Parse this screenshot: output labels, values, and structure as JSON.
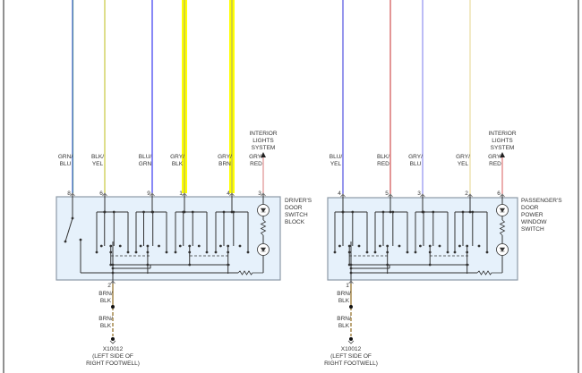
{
  "colors": {
    "box_fill": "#e6f1fb",
    "box_stroke": "#8c9aa6",
    "circuit": "#333333",
    "ground_wire": "#a08040"
  },
  "components": [
    {
      "name_lines": [
        "DRIVER'S",
        "DOOR",
        "SWITCH",
        "BLOCK"
      ],
      "interior": {
        "lines": [
          "INTERIOR",
          "LIGHTS",
          "SYSTEM"
        ],
        "pin_index": 5
      },
      "pins": [
        {
          "wire": [
            "GRN/",
            "BLU"
          ],
          "pin": "8",
          "color": "#4060e0",
          "stripe": "#50a050",
          "thick": false
        },
        {
          "wire": [
            "BLK/",
            "YEL"
          ],
          "pin": "6",
          "color": "#c8c840",
          "thick": false
        },
        {
          "wire": [
            "BLU/",
            "GRN"
          ],
          "pin": "9",
          "color": "#3838f0",
          "thick": false
        },
        {
          "wire": [
            "GRY/",
            "BLK"
          ],
          "pin": "1",
          "color": "#ffff00",
          "stripe": "#909090",
          "thick": true
        },
        {
          "wire": [
            "GRY/",
            "BRN"
          ],
          "pin": "4",
          "color": "#ffff00",
          "stripe": "#909090",
          "thick": true
        },
        {
          "wire": [
            "GRY/",
            "RED"
          ],
          "pin": "3",
          "color": "#e09090",
          "thick": false
        }
      ],
      "ground": {
        "pin": "2",
        "wire_top": [
          "BRN/",
          "BLK"
        ],
        "wire_bottom": [
          "BRN/",
          "BLK"
        ],
        "connector": [
          "X10012",
          "(LEFT SIDE OF",
          "RIGHT FOOTWELL)"
        ]
      }
    },
    {
      "name_lines": [
        "PASSENGER'S",
        "DOOR",
        "POWER",
        "WINDOW",
        "SWITCH"
      ],
      "interior": {
        "lines": [
          "INTERIOR",
          "LIGHTS",
          "SYSTEM"
        ],
        "pin_index": 4
      },
      "pins": [
        {
          "wire": [
            "BLU/",
            "YEL"
          ],
          "pin": "4",
          "color": "#5050e0",
          "thick": false
        },
        {
          "wire": [
            "BLK/",
            "RED"
          ],
          "pin": "5",
          "color": "#d05050",
          "thick": false
        },
        {
          "wire": [
            "GRY/",
            "BLU"
          ],
          "pin": "3",
          "color": "#9090f0",
          "thick": false
        },
        {
          "wire": [
            "GRY/",
            "YEL"
          ],
          "pin": "2",
          "color": "#e8dca0",
          "thick": false
        },
        {
          "wire": [
            "GRY/",
            "RED"
          ],
          "pin": "6",
          "color": "#e07878",
          "thick": false
        }
      ],
      "ground": {
        "pin": "1",
        "wire_top": [
          "BRN/",
          "BLK"
        ],
        "wire_bottom": [
          "BRN/",
          "BLK"
        ],
        "connector": [
          "X10012",
          "(LEFT SIDE OF",
          "RIGHT FOOTWELL)"
        ]
      }
    }
  ]
}
